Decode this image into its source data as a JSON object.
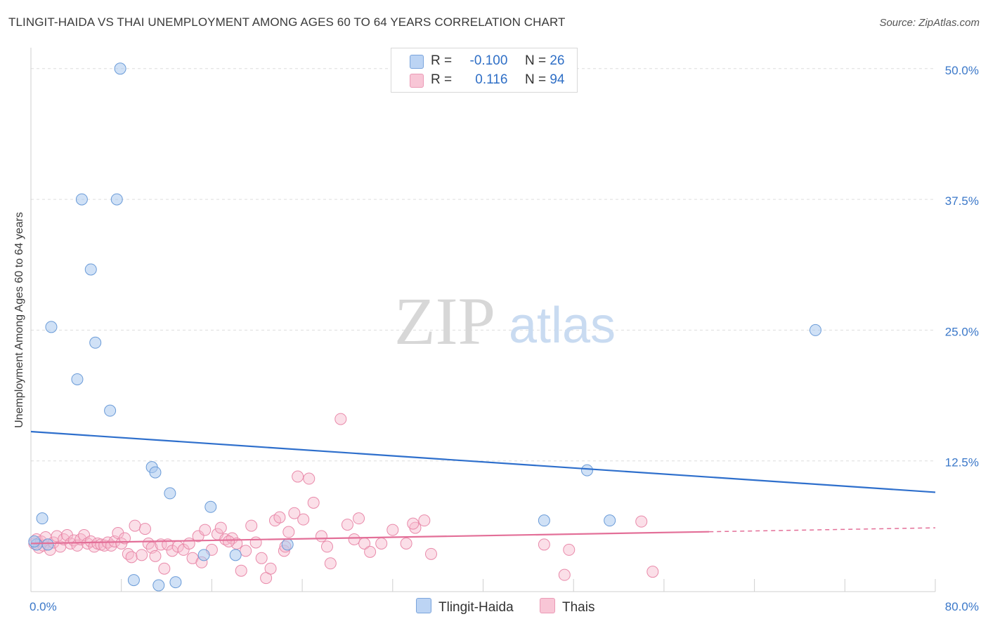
{
  "title": "TLINGIT-HAIDA VS THAI UNEMPLOYMENT AMONG AGES 60 TO 64 YEARS CORRELATION CHART",
  "source": "Source: ZipAtlas.com",
  "watermark": {
    "zip": "ZIP",
    "atlas": "atlas"
  },
  "colors": {
    "tlingit_fill": "#aac8ef",
    "tlingit_stroke": "#6a9bd8",
    "tlingit_line": "#2e6fcc",
    "thai_fill": "#f6b9cc",
    "thai_stroke": "#e98aaa",
    "thai_line": "#e36f98",
    "axis_text": "#3b78c9",
    "grid": "#dddddd"
  },
  "legend": {
    "rows": [
      {
        "r_label": "R =",
        "r_value": "-0.100",
        "n_label": "N =",
        "n_value": "26"
      },
      {
        "r_label": "R =",
        "r_value": "0.116",
        "n_label": "N =",
        "n_value": "94"
      }
    ]
  },
  "chart_data": {
    "type": "scatter",
    "title": "TLINGIT-HAIDA VS THAI UNEMPLOYMENT AMONG AGES 60 TO 64 YEARS CORRELATION CHART",
    "xlabel": "",
    "ylabel": "Unemployment Among Ages 60 to 64 years",
    "xlim": [
      0,
      80
    ],
    "ylim": [
      0,
      52
    ],
    "x_tick_labels": [
      "0.0%",
      "80.0%"
    ],
    "y_ticks": [
      12.5,
      25.0,
      37.5,
      50.0
    ],
    "y_tick_labels": [
      "12.5%",
      "25.0%",
      "37.5%",
      "50.0%"
    ],
    "grid": true,
    "legend_position": "bottom",
    "series": [
      {
        "name": "Tlingit-Haida",
        "r": -0.1,
        "n": 26,
        "trend": {
          "x": [
            0,
            80
          ],
          "y": [
            15.3,
            9.5
          ],
          "dashed_from": null
        },
        "points": [
          [
            0.5,
            4.5
          ],
          [
            1.0,
            7.0
          ],
          [
            1.5,
            4.5
          ],
          [
            1.8,
            25.3
          ],
          [
            4.5,
            37.5
          ],
          [
            5.3,
            30.8
          ],
          [
            5.7,
            23.8
          ],
          [
            4.1,
            20.3
          ],
          [
            7.0,
            17.3
          ],
          [
            7.9,
            50.0
          ],
          [
            7.6,
            37.5
          ],
          [
            10.7,
            11.9
          ],
          [
            11.0,
            11.4
          ],
          [
            12.3,
            9.4
          ],
          [
            15.9,
            8.1
          ],
          [
            15.3,
            3.5
          ],
          [
            18.1,
            3.5
          ],
          [
            22.7,
            4.5
          ],
          [
            9.1,
            1.1
          ],
          [
            11.3,
            0.6
          ],
          [
            12.8,
            0.9
          ],
          [
            45.4,
            6.8
          ],
          [
            49.2,
            11.6
          ],
          [
            51.2,
            6.8
          ],
          [
            69.4,
            25.0
          ],
          [
            0.3,
            4.8
          ]
        ]
      },
      {
        "name": "Thais",
        "r": 0.116,
        "n": 94,
        "trend": {
          "x": [
            0,
            80
          ],
          "y": [
            4.6,
            6.1
          ],
          "dashed_from": 60
        },
        "points": [
          [
            0.3,
            4.6
          ],
          [
            0.5,
            5.0
          ],
          [
            0.7,
            4.2
          ],
          [
            0.9,
            4.8
          ],
          [
            1.1,
            4.4
          ],
          [
            1.3,
            5.2
          ],
          [
            1.5,
            4.5
          ],
          [
            1.7,
            4.0
          ],
          [
            2.0,
            4.7
          ],
          [
            2.3,
            5.3
          ],
          [
            2.6,
            4.3
          ],
          [
            2.9,
            5.0
          ],
          [
            3.2,
            5.4
          ],
          [
            3.5,
            4.6
          ],
          [
            3.8,
            4.9
          ],
          [
            4.1,
            4.4
          ],
          [
            4.4,
            5.0
          ],
          [
            4.7,
            5.4
          ],
          [
            5.0,
            4.6
          ],
          [
            5.3,
            4.8
          ],
          [
            5.6,
            4.3
          ],
          [
            5.9,
            4.6
          ],
          [
            6.2,
            4.5
          ],
          [
            6.5,
            4.4
          ],
          [
            6.8,
            4.7
          ],
          [
            7.1,
            4.4
          ],
          [
            7.4,
            4.8
          ],
          [
            7.7,
            5.6
          ],
          [
            8.0,
            4.6
          ],
          [
            8.3,
            5.1
          ],
          [
            8.6,
            3.6
          ],
          [
            8.9,
            3.3
          ],
          [
            9.2,
            6.3
          ],
          [
            9.8,
            3.5
          ],
          [
            10.1,
            6.0
          ],
          [
            10.4,
            4.6
          ],
          [
            10.7,
            4.2
          ],
          [
            11.0,
            3.4
          ],
          [
            11.5,
            4.5
          ],
          [
            11.8,
            2.2
          ],
          [
            12.1,
            4.5
          ],
          [
            12.5,
            3.9
          ],
          [
            13.0,
            4.3
          ],
          [
            13.5,
            4.0
          ],
          [
            14.0,
            4.6
          ],
          [
            14.3,
            3.2
          ],
          [
            14.8,
            5.3
          ],
          [
            15.1,
            2.8
          ],
          [
            15.4,
            5.9
          ],
          [
            16.0,
            4.0
          ],
          [
            16.5,
            5.5
          ],
          [
            16.8,
            6.1
          ],
          [
            17.2,
            5.0
          ],
          [
            17.8,
            5.1
          ],
          [
            18.2,
            4.6
          ],
          [
            18.6,
            2.0
          ],
          [
            19.0,
            3.9
          ],
          [
            19.5,
            6.3
          ],
          [
            19.9,
            4.7
          ],
          [
            20.4,
            3.2
          ],
          [
            20.8,
            1.3
          ],
          [
            21.2,
            2.2
          ],
          [
            21.6,
            6.8
          ],
          [
            22.0,
            7.1
          ],
          [
            22.4,
            3.9
          ],
          [
            22.8,
            5.7
          ],
          [
            23.3,
            7.5
          ],
          [
            23.6,
            11.0
          ],
          [
            24.1,
            6.9
          ],
          [
            24.6,
            10.8
          ],
          [
            25.0,
            8.5
          ],
          [
            25.7,
            5.3
          ],
          [
            26.2,
            4.3
          ],
          [
            26.5,
            2.7
          ],
          [
            27.4,
            16.5
          ],
          [
            28.0,
            6.4
          ],
          [
            28.6,
            5.0
          ],
          [
            29.0,
            7.0
          ],
          [
            29.5,
            4.6
          ],
          [
            30.0,
            3.8
          ],
          [
            31.0,
            4.6
          ],
          [
            32.0,
            5.9
          ],
          [
            33.2,
            4.6
          ],
          [
            34.0,
            6.1
          ],
          [
            34.8,
            6.8
          ],
          [
            35.4,
            3.6
          ],
          [
            45.4,
            4.5
          ],
          [
            47.2,
            1.6
          ],
          [
            47.6,
            4.0
          ],
          [
            54.0,
            6.7
          ],
          [
            55.0,
            1.9
          ],
          [
            33.8,
            6.5
          ],
          [
            22.5,
            4.3
          ],
          [
            17.5,
            4.8
          ]
        ]
      }
    ]
  }
}
